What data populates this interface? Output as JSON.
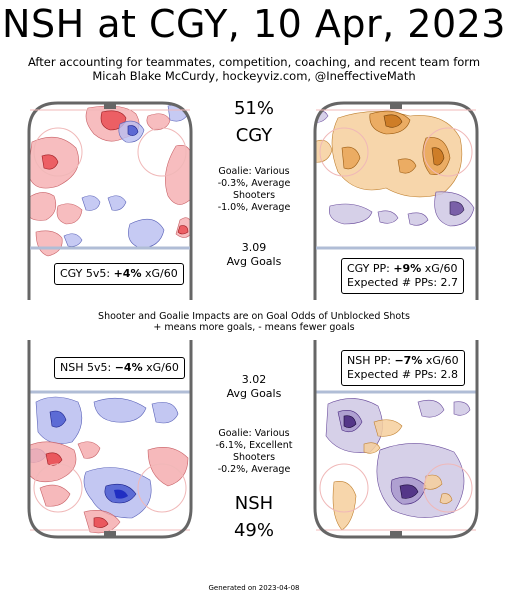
{
  "header": {
    "title": "NSH at CGY, 10 Apr, 2023",
    "subtitle_line1": "After accounting for teammates, competition, coaching, and recent team form",
    "subtitle_line2": "Micah Blake McCurdy, hockeyviz.com, @IneffectiveMath"
  },
  "home": {
    "win_pct": "51%",
    "team": "CGY",
    "goalie_line1": "Goalie: Various",
    "goalie_line2": "-0.3%, Average",
    "shooters_label": "Shooters",
    "shooters_line": "-1.0%, Average",
    "avg_goals_value": "3.09",
    "avg_goals_label": "Avg Goals",
    "ev_label_prefix": "CGY 5v5: ",
    "ev_value": "+4%",
    "ev_suffix": " xG/60",
    "pp_label_prefix": "CGY PP: ",
    "pp_value": "+9%",
    "pp_suffix": " xG/60",
    "pp_expected": "Expected # PPs: 2.7"
  },
  "away": {
    "win_pct": "49%",
    "team": "NSH",
    "goalie_line1": "Goalie: Various",
    "goalie_line2": "-6.1%, Excellent",
    "shooters_label": "Shooters",
    "shooters_line": "-0.2%, Average",
    "avg_goals_value": "3.02",
    "avg_goals_label": "Avg Goals",
    "ev_label_prefix": "NSH 5v5: ",
    "ev_value": "−4%",
    "ev_suffix": " xG/60",
    "pp_label_prefix": "NSH PP: ",
    "pp_value": "−7%",
    "pp_suffix": " xG/60",
    "pp_expected": "Expected # PPs: 2.8"
  },
  "impacts_line1": "Shooter and Goalie Impacts are on Goal Odds of Unblocked Shots",
  "impacts_line2": "+ means more goals, - means fewer goals",
  "footer": "Generated on 2023-04-08",
  "colors": {
    "more_goals_ev": "#e8474e",
    "fewer_goals_ev": "#4a5ad0",
    "more_goals_pp": "#e09030",
    "fewer_goals_pp": "#6a4c9c",
    "rink_outline": "#666666",
    "blue_line": "#b0bdd6",
    "red_line": "#f0b8b8"
  },
  "chart_data": {
    "type": "heatmap",
    "description_panels": [
      {
        "team": "CGY",
        "situation": "5v5",
        "xg60_change_pct": 4
      },
      {
        "team": "CGY",
        "situation": "PP",
        "xg60_change_pct": 9,
        "expected_pps": 2.7
      },
      {
        "team": "NSH",
        "situation": "5v5",
        "xg60_change_pct": -4
      },
      {
        "team": "NSH",
        "situation": "PP",
        "xg60_change_pct": -7,
        "expected_pps": 2.8
      }
    ],
    "win_probability": {
      "CGY": 51,
      "NSH": 49
    },
    "avg_goals": {
      "CGY": 3.09,
      "NSH": 3.02
    },
    "goalie_impact_pct": {
      "CGY": -0.3,
      "NSH": -6.1
    },
    "shooter_impact_pct": {
      "CGY": -1.0,
      "NSH": -0.2
    }
  }
}
